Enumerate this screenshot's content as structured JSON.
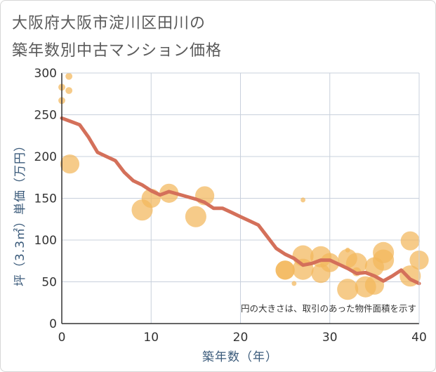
{
  "title": {
    "line1": "大阪府大阪市淀川区田川の",
    "line2": "築年数別中古マンション価格"
  },
  "chart_data": {
    "type": "scatter",
    "xlabel": "築年数（年）",
    "ylabel": "坪（3.3㎡）単価（万円）",
    "xlim": [
      0,
      40
    ],
    "ylim": [
      0,
      300
    ],
    "xticks": [
      0,
      10,
      20,
      30,
      40
    ],
    "yticks": [
      0,
      50,
      100,
      150,
      200,
      250,
      300
    ],
    "grid": true,
    "note": "円の大きさは、取引のあった物件面積を示す",
    "colors": {
      "bubble": "#f2b75c",
      "trend": "#d4705a",
      "grid": "#c8d0dc"
    },
    "points": [
      {
        "x": 0,
        "y": 283,
        "size": 2
      },
      {
        "x": 0,
        "y": 267,
        "size": 2
      },
      {
        "x": 0.8,
        "y": 296,
        "size": 2
      },
      {
        "x": 0.8,
        "y": 279,
        "size": 2
      },
      {
        "x": 0.9,
        "y": 191,
        "size": 8
      },
      {
        "x": 9,
        "y": 136,
        "size": 9
      },
      {
        "x": 10,
        "y": 150,
        "size": 8
      },
      {
        "x": 12,
        "y": 156,
        "size": 8
      },
      {
        "x": 15,
        "y": 128,
        "size": 9
      },
      {
        "x": 16,
        "y": 153,
        "size": 8
      },
      {
        "x": 25,
        "y": 64,
        "size": 8
      },
      {
        "x": 25,
        "y": 64,
        "size": 8
      },
      {
        "x": 26,
        "y": 48,
        "size": 1
      },
      {
        "x": 27,
        "y": 148,
        "size": 1
      },
      {
        "x": 27,
        "y": 81,
        "size": 9
      },
      {
        "x": 27,
        "y": 65,
        "size": 9
      },
      {
        "x": 29,
        "y": 80,
        "size": 9
      },
      {
        "x": 29,
        "y": 60,
        "size": 8
      },
      {
        "x": 30,
        "y": 73,
        "size": 8
      },
      {
        "x": 32,
        "y": 88,
        "size": 1
      },
      {
        "x": 32,
        "y": 78,
        "size": 8
      },
      {
        "x": 32,
        "y": 41,
        "size": 9
      },
      {
        "x": 33,
        "y": 72,
        "size": 9
      },
      {
        "x": 33,
        "y": 62,
        "size": 3
      },
      {
        "x": 34,
        "y": 44,
        "size": 9
      },
      {
        "x": 35,
        "y": 68,
        "size": 8
      },
      {
        "x": 35,
        "y": 46,
        "size": 8
      },
      {
        "x": 36,
        "y": 85,
        "size": 9
      },
      {
        "x": 36,
        "y": 76,
        "size": 9
      },
      {
        "x": 39,
        "y": 99,
        "size": 8
      },
      {
        "x": 39,
        "y": 57,
        "size": 9
      },
      {
        "x": 40,
        "y": 76,
        "size": 8
      }
    ],
    "trend": {
      "x": [
        0,
        1,
        2,
        3,
        4,
        5,
        6,
        7,
        8,
        9,
        10,
        11,
        12,
        13,
        14,
        15,
        16,
        17,
        18,
        19,
        20,
        21,
        22,
        23,
        24,
        25,
        26,
        27,
        28,
        29,
        30,
        31,
        32,
        33,
        34,
        35,
        36,
        37,
        38,
        39,
        40
      ],
      "y": [
        246,
        242,
        238,
        223,
        205,
        200,
        195,
        181,
        171,
        166,
        159,
        154,
        158,
        155,
        152,
        149,
        145,
        138,
        138,
        133,
        128,
        123,
        118,
        104,
        90,
        83,
        78,
        70,
        72,
        76,
        76,
        71,
        66,
        60,
        61,
        57,
        51,
        57,
        64,
        53,
        48
      ]
    }
  }
}
